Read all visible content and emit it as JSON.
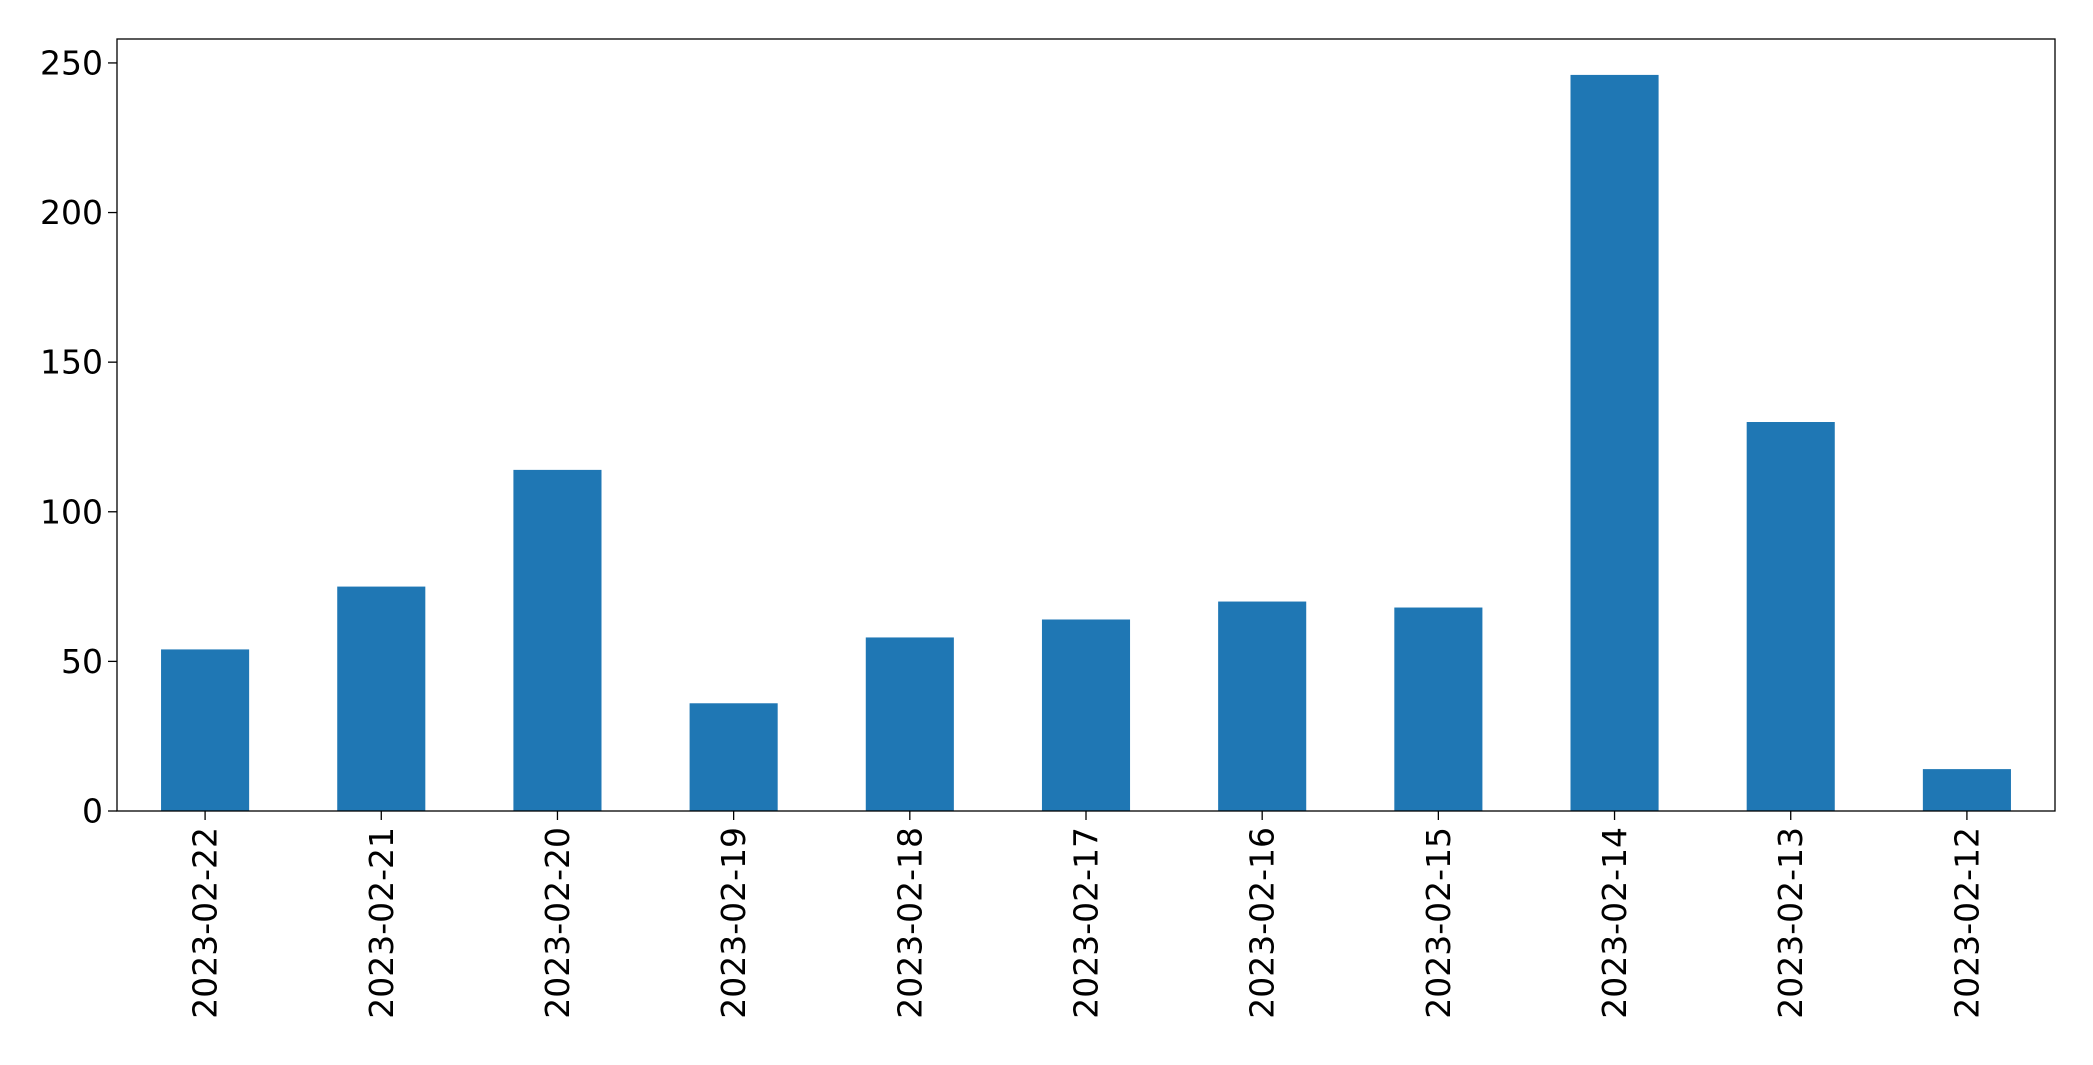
{
  "chart_data": {
    "type": "bar",
    "title": "",
    "xlabel": "",
    "ylabel": "",
    "categories": [
      "2023-02-22",
      "2023-02-21",
      "2023-02-20",
      "2023-02-19",
      "2023-02-18",
      "2023-02-17",
      "2023-02-16",
      "2023-02-15",
      "2023-02-14",
      "2023-02-13",
      "2023-02-12"
    ],
    "values": [
      54,
      75,
      114,
      36,
      58,
      64,
      70,
      68,
      246,
      130,
      14
    ],
    "ylim": [
      0,
      258
    ],
    "yticks": [
      0,
      50,
      100,
      150,
      200,
      250
    ],
    "grid": false,
    "legend": "none",
    "bar_color": "#1f77b4"
  }
}
